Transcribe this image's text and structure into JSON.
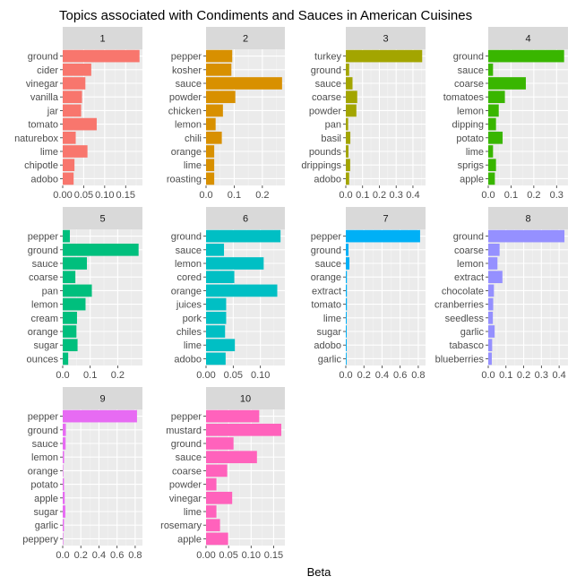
{
  "chart_data": {
    "type": "bar",
    "title": "Topics associated with  Condiments and Sauces in American Cuisines",
    "xlabel": "Beta",
    "ylabel": "",
    "orientation": "horizontal",
    "facets": [
      {
        "label": "1",
        "color": "#F8766D",
        "xlim": [
          0,
          0.19
        ],
        "ticks": [
          0.0,
          0.05,
          0.1,
          0.15
        ],
        "tick_labels": [
          "0.00",
          "0.05",
          "0.10",
          "0.15"
        ],
        "categories": [
          "ground",
          "cider",
          "vinegar",
          "vanilla",
          "jar",
          "tomato",
          "naturebox",
          "lime",
          "chipotle",
          "adobo"
        ],
        "values": [
          0.183,
          0.068,
          0.054,
          0.046,
          0.044,
          0.081,
          0.031,
          0.059,
          0.028,
          0.026
        ]
      },
      {
        "label": "2",
        "color": "#D89000",
        "xlim": [
          0,
          0.28
        ],
        "ticks": [
          0.0,
          0.1,
          0.2
        ],
        "tick_labels": [
          "0.0",
          "0.1",
          "0.2"
        ],
        "categories": [
          "pepper",
          "kosher",
          "sauce",
          "powder",
          "chicken",
          "lemon",
          "chili",
          "orange",
          "lime",
          "roasting"
        ],
        "values": [
          0.093,
          0.09,
          0.27,
          0.104,
          0.06,
          0.034,
          0.056,
          0.029,
          0.029,
          0.029
        ]
      },
      {
        "label": "3",
        "color": "#A3A500",
        "xlim": [
          0,
          0.475
        ],
        "ticks": [
          0.0,
          0.1,
          0.2,
          0.3,
          0.4
        ],
        "tick_labels": [
          "0.0",
          "0.1",
          "0.2",
          "0.3",
          "0.4"
        ],
        "categories": [
          "turkey",
          "ground",
          "sauce",
          "coarse",
          "powder",
          "pan",
          "basil",
          "pounds",
          "drippings",
          "adobo"
        ],
        "values": [
          0.455,
          0.02,
          0.04,
          0.068,
          0.063,
          0.014,
          0.027,
          0.016,
          0.026,
          0.02
        ]
      },
      {
        "label": "4",
        "color": "#39B600",
        "xlim": [
          0,
          0.35
        ],
        "ticks": [
          0.0,
          0.1,
          0.2,
          0.3
        ],
        "tick_labels": [
          "0.0",
          "0.1",
          "0.2",
          "0.3"
        ],
        "categories": [
          "ground",
          "sauce",
          "coarse",
          "tomatoes",
          "lemon",
          "dipping",
          "potato",
          "lime",
          "sprigs",
          "apple"
        ],
        "values": [
          0.333,
          0.021,
          0.165,
          0.073,
          0.046,
          0.034,
          0.063,
          0.021,
          0.034,
          0.029
        ]
      },
      {
        "label": "5",
        "color": "#00BF7D",
        "xlim": [
          0,
          0.29
        ],
        "ticks": [
          0.0,
          0.1,
          0.2
        ],
        "tick_labels": [
          "0.0",
          "0.1",
          "0.2"
        ],
        "categories": [
          "pepper",
          "ground",
          "sauce",
          "coarse",
          "pan",
          "lemon",
          "cream",
          "orange",
          "sugar",
          "ounces"
        ],
        "values": [
          0.026,
          0.276,
          0.088,
          0.046,
          0.106,
          0.083,
          0.052,
          0.05,
          0.054,
          0.02
        ]
      },
      {
        "label": "6",
        "color": "#00BFC4",
        "xlim": [
          0,
          0.145
        ],
        "ticks": [
          0.0,
          0.05,
          0.1
        ],
        "tick_labels": [
          "0.00",
          "0.05",
          "0.10"
        ],
        "categories": [
          "ground",
          "sauce",
          "lemon",
          "cored",
          "orange",
          "juices",
          "pork",
          "chiles",
          "lime",
          "adobo"
        ],
        "values": [
          0.137,
          0.033,
          0.106,
          0.052,
          0.131,
          0.037,
          0.037,
          0.035,
          0.053,
          0.036
        ]
      },
      {
        "label": "7",
        "color": "#00B0F6",
        "xlim": [
          0,
          0.88
        ],
        "ticks": [
          0.0,
          0.2,
          0.4,
          0.6,
          0.8
        ],
        "tick_labels": [
          "0.0",
          "0.2",
          "0.4",
          "0.6",
          "0.8"
        ],
        "categories": [
          "pepper",
          "ground",
          "sauce",
          "orange",
          "extract",
          "tomato",
          "lime",
          "sugar",
          "adobo",
          "garlic"
        ],
        "values": [
          0.82,
          0.03,
          0.04,
          0.012,
          0.012,
          0.012,
          0.01,
          0.01,
          0.01,
          0.009
        ]
      },
      {
        "label": "8",
        "color": "#9590FF",
        "xlim": [
          0,
          0.45
        ],
        "ticks": [
          0.0,
          0.1,
          0.2,
          0.3,
          0.4
        ],
        "tick_labels": [
          "0.0",
          "0.1",
          "0.2",
          "0.3",
          "0.4"
        ],
        "categories": [
          "ground",
          "coarse",
          "lemon",
          "extract",
          "chocolate",
          "cranberries",
          "seedless",
          "garlic",
          "tabasco",
          "blueberries"
        ],
        "values": [
          0.43,
          0.064,
          0.052,
          0.08,
          0.032,
          0.028,
          0.026,
          0.036,
          0.022,
          0.02
        ]
      },
      {
        "label": "9",
        "color": "#E76BF3",
        "xlim": [
          0,
          0.88
        ],
        "ticks": [
          0.0,
          0.2,
          0.4,
          0.6,
          0.8
        ],
        "tick_labels": [
          "0.0",
          "0.2",
          "0.4",
          "0.6",
          "0.8"
        ],
        "categories": [
          "pepper",
          "ground",
          "sauce",
          "lemon",
          "orange",
          "potato",
          "apple",
          "sugar",
          "garlic",
          "peppery"
        ],
        "values": [
          0.82,
          0.035,
          0.032,
          0.015,
          0.006,
          0.014,
          0.022,
          0.029,
          0.014,
          0.003
        ]
      },
      {
        "label": "10",
        "color": "#FF62BC",
        "xlim": [
          0,
          0.175
        ],
        "ticks": [
          0.0,
          0.05,
          0.1,
          0.15
        ],
        "tick_labels": [
          "0.00",
          "0.05",
          "0.10",
          "0.15"
        ],
        "categories": [
          "pepper",
          "mustard",
          "ground",
          "sauce",
          "coarse",
          "powder",
          "vinegar",
          "lime",
          "rosemary",
          "apple"
        ],
        "values": [
          0.118,
          0.167,
          0.061,
          0.113,
          0.047,
          0.023,
          0.058,
          0.023,
          0.031,
          0.049
        ]
      }
    ]
  }
}
